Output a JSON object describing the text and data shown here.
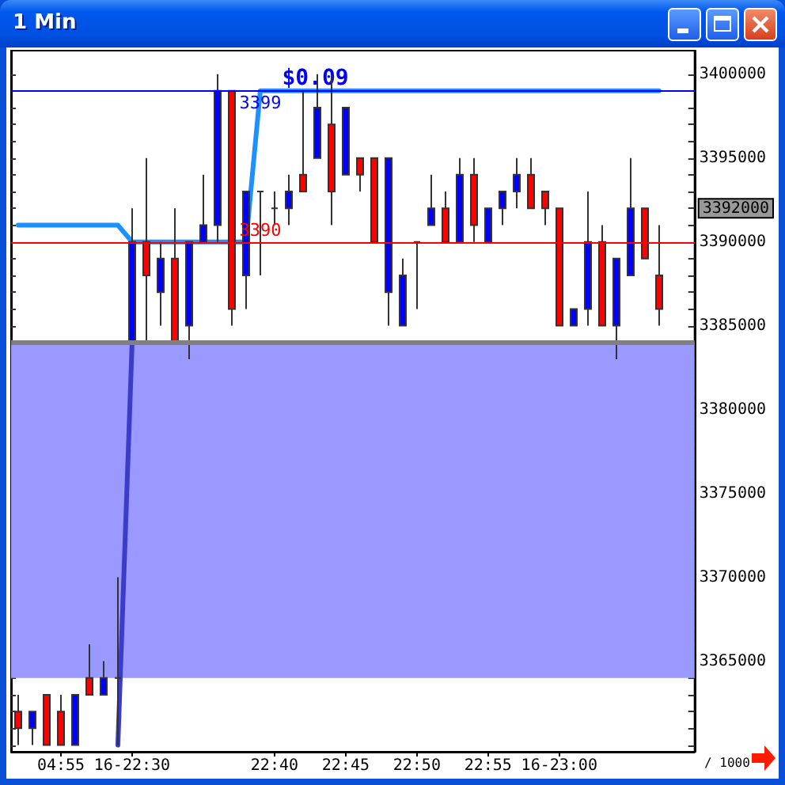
{
  "chart_data": {
    "type": "candlestick",
    "title": "1 Min",
    "categories": [
      null,
      null,
      null,
      "04:55",
      null,
      null,
      null,
      null,
      "16-22:30",
      null,
      null,
      null,
      null,
      null,
      null,
      null,
      null,
      null,
      "22:40",
      null,
      null,
      null,
      null,
      "22:45",
      null,
      null,
      null,
      null,
      "22:50",
      null,
      null,
      null,
      null,
      "22:55",
      null,
      null,
      null,
      null,
      "16-23:00",
      null,
      null,
      null,
      null,
      null,
      null,
      null,
      null,
      null
    ],
    "series": [
      {
        "type": "candlestick",
        "ohlc": [
          [
            3362000,
            3363000,
            3360000,
            3361000
          ],
          [
            3361000,
            3362000,
            3360000,
            3362000
          ],
          [
            3363000,
            3363000,
            3360000,
            3360000
          ],
          [
            3362000,
            3363000,
            3360000,
            3360000
          ],
          [
            3360000,
            3363000,
            3360000,
            3363000
          ],
          [
            3364000,
            3366000,
            3363000,
            3363000
          ],
          [
            3363000,
            3365000,
            3363000,
            3364000
          ],
          [
            3364000,
            3370000,
            3360000,
            3364000
          ],
          [
            3384000,
            3392000,
            3384000,
            3390000
          ],
          [
            3390000,
            3395000,
            3384000,
            3388000
          ],
          [
            3387000,
            3390000,
            3385000,
            3389000
          ],
          [
            3389000,
            3392000,
            3384000,
            3384000
          ],
          [
            3385000,
            3390000,
            3383000,
            3390000
          ],
          [
            3390000,
            3394000,
            3390000,
            3391000
          ],
          [
            3391000,
            3400000,
            3390000,
            3399000
          ],
          [
            3399000,
            3399000,
            3385000,
            3386000
          ],
          [
            3388000,
            3393000,
            3386000,
            3393000
          ],
          [
            3393000,
            3393000,
            3388000,
            3393000
          ],
          [
            3392000,
            3393000,
            3391000,
            3392000
          ],
          [
            3392000,
            3394000,
            3391000,
            3393000
          ],
          [
            3394000,
            3399000,
            3393000,
            3393000
          ],
          [
            3395000,
            3400000,
            3395000,
            3398000
          ],
          [
            3397000,
            3400000,
            3391000,
            3393000
          ],
          [
            3394000,
            3398000,
            3394000,
            3398000
          ],
          [
            3395000,
            3395000,
            3393000,
            3394000
          ],
          [
            3395000,
            3395000,
            3390000,
            3390000
          ],
          [
            3387000,
            3395000,
            3385000,
            3395000
          ],
          [
            3385000,
            3389000,
            3385000,
            3388000
          ],
          [
            3390000,
            3390000,
            3386000,
            3390000
          ],
          [
            3391000,
            3394000,
            3391000,
            3392000
          ],
          [
            3392000,
            3393000,
            3390000,
            3390000
          ],
          [
            3390000,
            3395000,
            3390000,
            3394000
          ],
          [
            3394000,
            3395000,
            3390000,
            3391000
          ],
          [
            3390000,
            3392000,
            3390000,
            3392000
          ],
          [
            3392000,
            3393000,
            3391000,
            3393000
          ],
          [
            3393000,
            3395000,
            3392000,
            3394000
          ],
          [
            3394000,
            3395000,
            3392000,
            3392000
          ],
          [
            3393000,
            3393000,
            3391000,
            3392000
          ],
          [
            3392000,
            3392000,
            3385000,
            3385000
          ],
          [
            3385000,
            3386000,
            3385000,
            3386000
          ],
          [
            3386000,
            3393000,
            3385000,
            3390000
          ],
          [
            3390000,
            3391000,
            3385000,
            3385000
          ],
          [
            3385000,
            3389000,
            3383000,
            3389000
          ],
          [
            3388000,
            3395000,
            3388000,
            3392000
          ],
          [
            3392000,
            3392000,
            3389000,
            3389000
          ],
          [
            3388000,
            3391000,
            3385000,
            3386000
          ],
          null,
          null
        ],
        "colors": [
          "#ff0000",
          "#0000ff",
          "#ff0000",
          "#ff0000",
          "#0000ff",
          "#ff0000",
          "#0000ff",
          "#333333",
          "#0000ff",
          "#ff0000",
          "#0000ff",
          "#ff0000",
          "#0000ff",
          "#0000ff",
          "#0000ff",
          "#ff0000",
          "#0000ff",
          "#333333",
          "#333333",
          "#0000ff",
          "#ff0000",
          "#0000ff",
          "#ff0000",
          "#0000ff",
          "#ff0000",
          "#ff0000",
          "#0000ff",
          "#0000ff",
          "#333333",
          "#0000ff",
          "#ff0000",
          "#0000ff",
          "#ff0000",
          "#0000ff",
          "#0000ff",
          "#0000ff",
          "#ff0000",
          "#ff0000",
          "#ff0000",
          "#0000ff",
          "#0000ff",
          "#ff0000",
          "#0000ff",
          "#0000ff",
          "#ff0000",
          "#ff0000",
          null,
          null
        ]
      },
      {
        "type": "line",
        "color": "#1e90ff",
        "values": [
          3391000,
          3391000,
          3391000,
          3391000,
          3391000,
          3391000,
          3391000,
          3391000,
          3390000,
          3390000,
          3390000,
          3390000,
          3390000,
          3390000,
          3390000,
          3390000,
          3390000,
          3399000,
          3399000,
          3399000,
          3399000,
          3399000,
          3399000,
          3399000,
          3399000,
          3399000,
          3399000,
          3399000,
          3399000,
          3399000,
          3399000,
          3399000,
          3399000,
          3399000,
          3399000,
          3399000,
          3399000,
          3399000,
          3399000,
          3399000,
          3399000,
          3399000,
          3399000,
          3399000,
          3399000,
          3399000,
          null,
          null
        ]
      },
      {
        "type": "line",
        "color": "#3c3cc8",
        "values": [
          null,
          null,
          null,
          null,
          null,
          null,
          null,
          3360000,
          3384000,
          null,
          null,
          null,
          null,
          null,
          null,
          null,
          null,
          null,
          null,
          null,
          null,
          null,
          null,
          null,
          null,
          null,
          null,
          null,
          null,
          null,
          null,
          null,
          null,
          null,
          null,
          null,
          null,
          null,
          null,
          null,
          null,
          null,
          null,
          null,
          null,
          null,
          null,
          null
        ]
      }
    ],
    "ylim": [
      3359600,
      3401400
    ],
    "yticks": [
      {
        "value": 3360000,
        "label": null
      },
      {
        "value": 3361000,
        "label": null
      },
      {
        "value": 3362000,
        "label": null
      },
      {
        "value": 3363000,
        "label": null
      },
      {
        "value": 3364000,
        "label": null
      },
      3365000,
      {
        "value": 3366000,
        "label": null
      },
      {
        "value": 3367000,
        "label": null
      },
      {
        "value": 3368000,
        "label": null
      },
      {
        "value": 3369000,
        "label": null
      },
      3370000,
      {
        "value": 3371000,
        "label": null
      },
      {
        "value": 3372000,
        "label": null
      },
      {
        "value": 3373000,
        "label": null
      },
      {
        "value": 3374000,
        "label": null
      },
      3375000,
      {
        "value": 3376000,
        "label": null
      },
      {
        "value": 3377000,
        "label": null
      },
      {
        "value": 3378000,
        "label": null
      },
      {
        "value": 3379000,
        "label": null
      },
      3380000,
      {
        "value": 3381000,
        "label": null
      },
      {
        "value": 3382000,
        "label": null
      },
      {
        "value": 3383000,
        "label": null
      },
      {
        "value": 3384000,
        "label": null
      },
      3385000,
      {
        "value": 3386000,
        "label": null
      },
      {
        "value": 3387000,
        "label": null
      },
      {
        "value": 3388000,
        "label": null
      },
      {
        "value": 3389000,
        "label": null
      },
      3390000,
      {
        "value": 3391000,
        "label": null
      },
      3392000,
      {
        "value": 3393000,
        "label": null
      },
      {
        "value": 3394000,
        "label": null
      },
      3395000,
      {
        "value": 3396000,
        "label": null
      },
      {
        "value": 3397000,
        "label": null
      },
      {
        "value": 3398000,
        "label": null
      },
      {
        "value": 3399000,
        "label": null
      },
      3400000
    ],
    "ref_lines": [
      {
        "axis": "y",
        "value": 3399000,
        "color": "#0000ff"
      },
      {
        "axis": "y",
        "value": 3390000,
        "color": "#ff0000"
      },
      {
        "axis": "y",
        "value": 3384000,
        "color": "#808080"
      }
    ],
    "bands": [
      {
        "axis": "y",
        "from": 3364000,
        "to": 3384000,
        "color": "#9999ff"
      }
    ],
    "annotations": [
      {
        "text": "$0.09",
        "y": 3399000
      },
      {
        "text": "3399",
        "y": 3399000
      },
      {
        "text": "3390",
        "y": 3390000
      },
      "/ 1000"
    ]
  }
}
